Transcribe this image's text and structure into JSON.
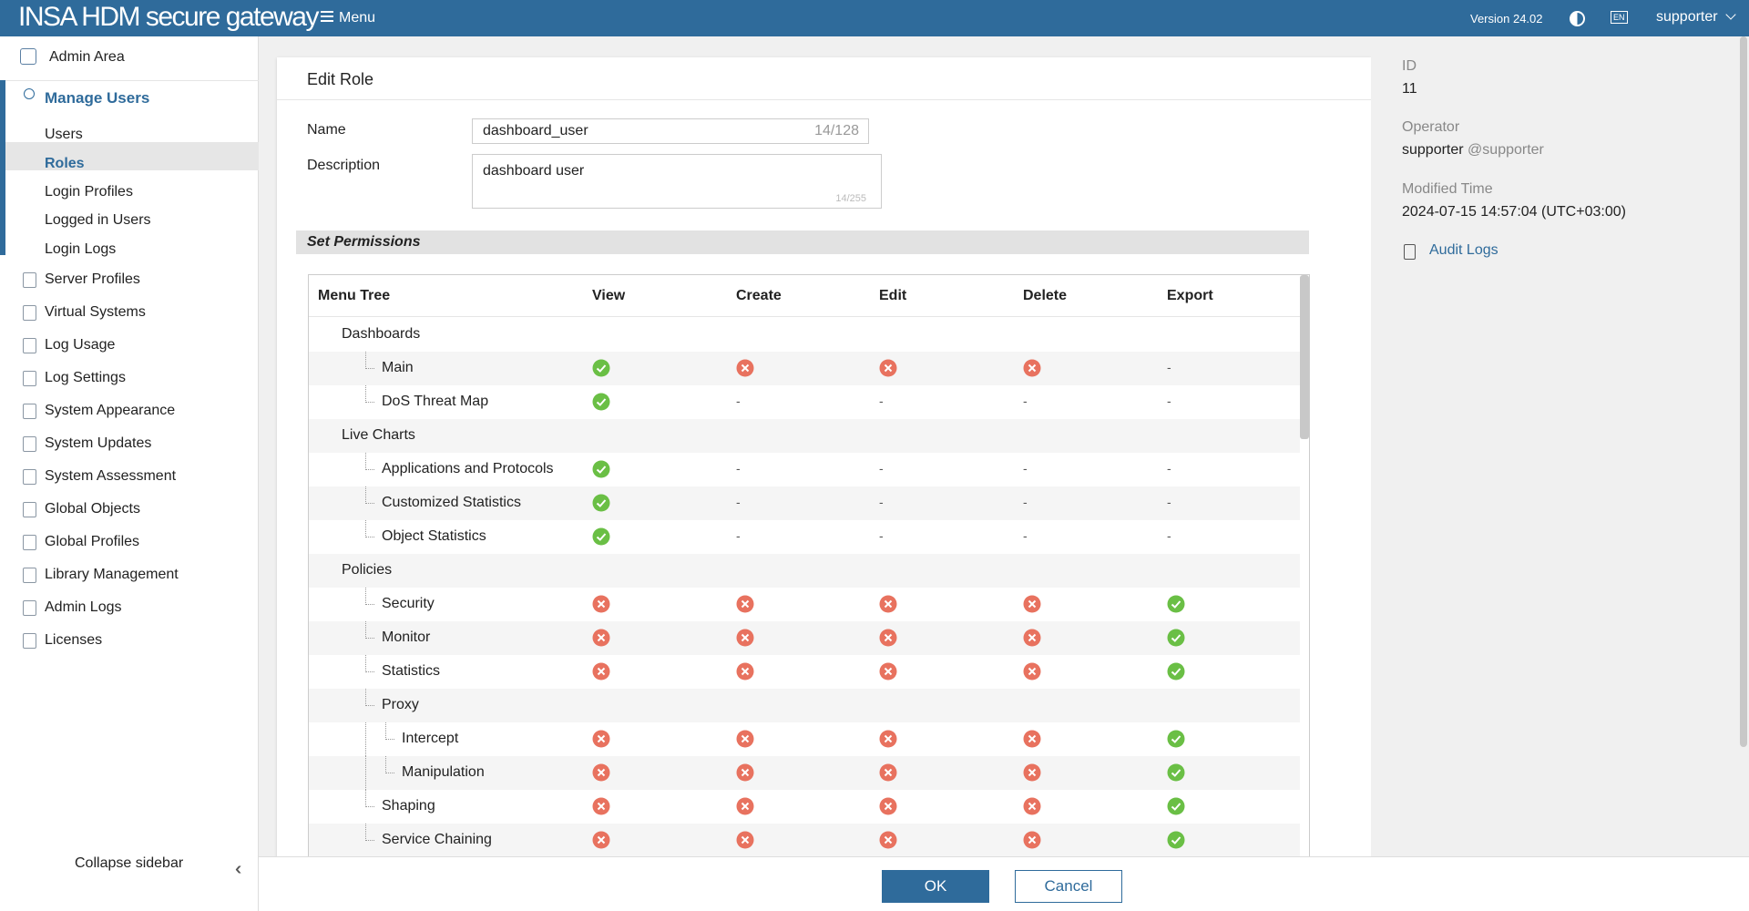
{
  "header": {
    "brand": "INSA HDM secure gateway",
    "menu": "Menu",
    "version": "Version 24.02",
    "language": "EN",
    "user": "supporter"
  },
  "sidebar": {
    "top": "Admin Area",
    "section": "Manage Users",
    "sub_items": [
      "Users",
      "Roles",
      "Login Profiles",
      "Logged in Users",
      "Login Logs"
    ],
    "active": "Roles",
    "items": [
      "Server Profiles",
      "Virtual Systems",
      "Log Usage",
      "Log Settings",
      "System Appearance",
      "System Updates",
      "System Assessment",
      "Global Objects",
      "Global Profiles",
      "Library Management",
      "Admin Logs",
      "Licenses"
    ],
    "collapse": "Collapse sidebar"
  },
  "form": {
    "title": "Edit Role",
    "name_label": "Name",
    "name_value": "dashboard_user",
    "name_counter": "14/128",
    "description_label": "Description",
    "description_value": "dashboard user",
    "description_counter": "14/255",
    "section": "Set Permissions"
  },
  "table": {
    "columns": [
      "Menu Tree",
      "View",
      "Create",
      "Edit",
      "Delete",
      "Export"
    ],
    "rows": [
      {
        "name": "Dashboards",
        "level": 0,
        "cells": []
      },
      {
        "name": "Main",
        "level": 1,
        "cells": [
          true,
          false,
          false,
          false,
          "-"
        ]
      },
      {
        "name": "DoS Threat Map",
        "level": 1,
        "cells": [
          true,
          "-",
          "-",
          "-",
          "-"
        ]
      },
      {
        "name": "Live Charts",
        "level": 0,
        "cells": []
      },
      {
        "name": "Applications and Protocols",
        "level": 1,
        "cells": [
          true,
          "-",
          "-",
          "-",
          "-"
        ]
      },
      {
        "name": "Customized Statistics",
        "level": 1,
        "cells": [
          true,
          "-",
          "-",
          "-",
          "-"
        ]
      },
      {
        "name": "Object Statistics",
        "level": 1,
        "cells": [
          true,
          "-",
          "-",
          "-",
          "-"
        ]
      },
      {
        "name": "Policies",
        "level": 0,
        "cells": []
      },
      {
        "name": "Security",
        "level": 1,
        "cells": [
          false,
          false,
          false,
          false,
          true
        ]
      },
      {
        "name": "Monitor",
        "level": 1,
        "cells": [
          false,
          false,
          false,
          false,
          true
        ]
      },
      {
        "name": "Statistics",
        "level": 1,
        "cells": [
          false,
          false,
          false,
          false,
          true
        ]
      },
      {
        "name": "Proxy",
        "level": 1,
        "cells": []
      },
      {
        "name": "Intercept",
        "level": 2,
        "cells": [
          false,
          false,
          false,
          false,
          true
        ]
      },
      {
        "name": "Manipulation",
        "level": 2,
        "cells": [
          false,
          false,
          false,
          false,
          true
        ]
      },
      {
        "name": "Shaping",
        "level": 1,
        "cells": [
          false,
          false,
          false,
          false,
          true
        ]
      },
      {
        "name": "Service Chaining",
        "level": 1,
        "cells": [
          false,
          false,
          false,
          false,
          true
        ]
      }
    ]
  },
  "details": {
    "id_label": "ID",
    "id": "11",
    "operator_label": "Operator",
    "operator": "supporter",
    "operator_handle": "@supporter",
    "modified_label": "Modified Time",
    "modified": "2024-07-15 14:57:04 (UTC+03:00)",
    "audit": "Audit Logs"
  },
  "buttons": {
    "ok": "OK",
    "cancel": "Cancel"
  }
}
